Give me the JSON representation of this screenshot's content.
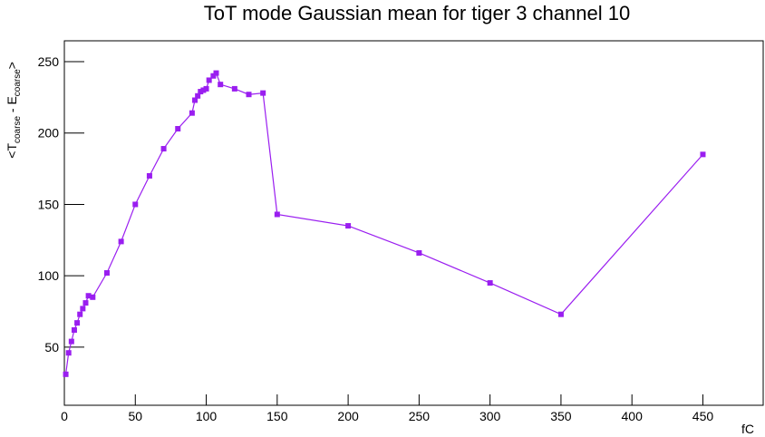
{
  "chart_data": {
    "type": "line",
    "title": "ToT mode Gaussian mean for tiger 3 channel 10",
    "x_label": "fC",
    "y_label": [
      "<T",
      "coarse",
      " - E",
      "coarse",
      ">"
    ],
    "x": [
      1,
      3,
      5,
      7,
      9,
      11,
      13,
      15,
      17,
      20,
      30,
      40,
      50,
      60,
      70,
      80,
      90,
      92,
      94,
      96,
      98,
      100,
      102,
      105,
      107,
      110,
      120,
      130,
      140,
      150,
      200,
      250,
      300,
      350,
      450
    ],
    "series": [
      {
        "color": "#9a1ef0",
        "values": [
          31,
          46,
          54,
          62,
          67,
          73,
          77,
          81,
          86,
          85,
          102,
          124,
          150,
          170,
          189,
          203,
          214,
          223,
          226,
          229,
          230,
          231,
          237,
          240,
          242,
          234,
          231,
          227,
          228,
          143,
          135,
          116,
          95,
          73,
          185
        ]
      }
    ],
    "xlim": [
      0,
      492.5
    ],
    "ylim": [
      9.3,
      264.6
    ],
    "xticks": [
      0,
      50,
      100,
      150,
      200,
      250,
      300,
      350,
      400,
      450
    ],
    "yticks": [
      50,
      100,
      150,
      200,
      250
    ]
  }
}
